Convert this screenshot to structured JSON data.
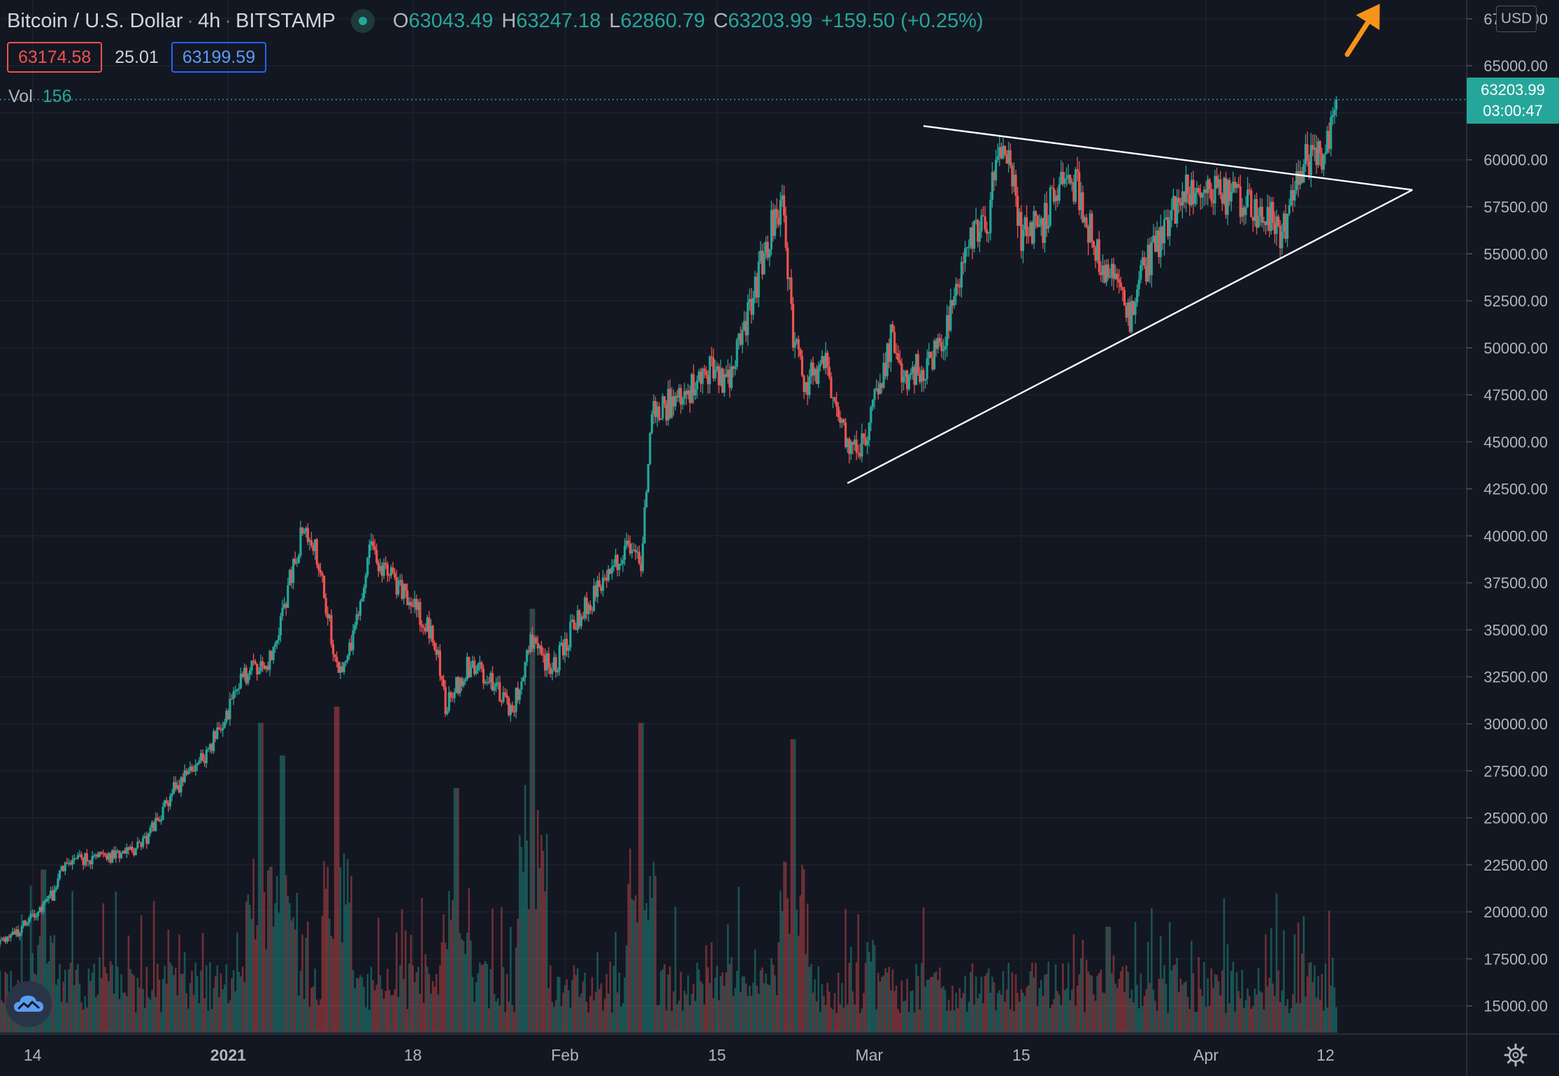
{
  "header": {
    "symbol": "Bitcoin / U.S. Dollar",
    "interval": "4h",
    "exchange": "BITSTAMP",
    "open_label": "O",
    "open": "63043.49",
    "high_label": "H",
    "high": "63247.18",
    "low_label": "L",
    "low": "62860.79",
    "close_label": "C",
    "close": "63203.99",
    "change": "+159.50 (+0.25%)"
  },
  "quote": {
    "sell": "63174.58",
    "spread": "25.01",
    "buy": "63199.59"
  },
  "volume": {
    "label": "Vol",
    "value": "156"
  },
  "price_scale": {
    "currency": "USD",
    "last_price": "63203.99",
    "countdown": "03:00:47"
  },
  "icons": {
    "logo": "tradingview-cloud-icon",
    "settings": "gear-icon",
    "status": "market-open-dot-icon",
    "arrow": "breakout-arrow-icon"
  },
  "colors": {
    "background": "#131722",
    "up": "#26a69a",
    "down": "#ef5350",
    "grid": "#1e222d",
    "drawing": "#ffffff",
    "arrow": "#f7931a"
  },
  "chart_data": {
    "type": "candlestick",
    "interval": "4h",
    "price_axis": {
      "range": [
        13500,
        68500
      ],
      "ticks": [
        15000,
        17500,
        20000,
        22500,
        25000,
        27500,
        30000,
        32500,
        35000,
        37500,
        40000,
        42500,
        45000,
        47500,
        50000,
        52500,
        55000,
        57500,
        60000,
        62500,
        65000,
        67500
      ],
      "tick_labels": [
        "15000.00",
        "17500.00",
        "20000.00",
        "22500.00",
        "25000.00",
        "27500.00",
        "30000.00",
        "32500.00",
        "35000.00",
        "37500.00",
        "40000.00",
        "42500.00",
        "45000.00",
        "47500.00",
        "50000.00",
        "52500.00",
        "55000.00",
        "57500.00",
        "60000.00",
        "",
        "65000.00",
        "67500.00"
      ]
    },
    "time_axis": {
      "range": [
        "2020-12-11",
        "2021-04-25"
      ],
      "ticks": [
        "2020-12-14",
        "2021-01-01",
        "2021-01-18",
        "2021-02-01",
        "2021-02-15",
        "2021-03-01",
        "2021-03-15",
        "2021-04-01",
        "2021-04-12"
      ],
      "tick_labels": [
        "14",
        "2021",
        "18",
        "Feb",
        "15",
        "Mar",
        "15",
        "Apr",
        "12"
      ]
    },
    "grid": true,
    "last_price": 63203.99,
    "price_path": [
      [
        "2020-12-11",
        18300
      ],
      [
        "2020-12-13",
        19100
      ],
      [
        "2020-12-16",
        21000
      ],
      [
        "2020-12-17",
        22800
      ],
      [
        "2020-12-22",
        23000
      ],
      [
        "2020-12-24",
        23400
      ],
      [
        "2020-12-27",
        26500
      ],
      [
        "2020-12-30",
        28300
      ],
      [
        "2021-01-02",
        32000
      ],
      [
        "2021-01-03",
        33000
      ],
      [
        "2021-01-05",
        33500
      ],
      [
        "2021-01-08",
        40800
      ],
      [
        "2021-01-09",
        39500
      ],
      [
        "2021-01-11",
        33000
      ],
      [
        "2021-01-12",
        33500
      ],
      [
        "2021-01-14",
        39200
      ],
      [
        "2021-01-18",
        36300
      ],
      [
        "2021-01-20",
        34500
      ],
      [
        "2021-01-21",
        31000
      ],
      [
        "2021-01-23",
        33000
      ],
      [
        "2021-01-25",
        32500
      ],
      [
        "2021-01-27",
        30500
      ],
      [
        "2021-01-29",
        34500
      ],
      [
        "2021-01-30",
        33500
      ],
      [
        "2021-01-31",
        33000
      ],
      [
        "2021-02-02",
        35500
      ],
      [
        "2021-02-05",
        37800
      ],
      [
        "2021-02-07",
        39500
      ],
      [
        "2021-02-08",
        38000
      ],
      [
        "2021-02-09",
        46500
      ],
      [
        "2021-02-12",
        47500
      ],
      [
        "2021-02-14",
        49000
      ],
      [
        "2021-02-16",
        48000
      ],
      [
        "2021-02-18",
        52000
      ],
      [
        "2021-02-20",
        56500
      ],
      [
        "2021-02-21",
        57500
      ],
      [
        "2021-02-22",
        50500
      ],
      [
        "2021-02-23",
        48000
      ],
      [
        "2021-02-25",
        49500
      ],
      [
        "2021-02-26",
        46500
      ],
      [
        "2021-02-28",
        44000
      ],
      [
        "2021-03-02",
        48000
      ],
      [
        "2021-03-03",
        50500
      ],
      [
        "2021-03-04",
        48500
      ],
      [
        "2021-03-06",
        49000
      ],
      [
        "2021-03-08",
        50500
      ],
      [
        "2021-03-10",
        55500
      ],
      [
        "2021-03-12",
        57000
      ],
      [
        "2021-03-13",
        61000
      ],
      [
        "2021-03-14",
        59800
      ],
      [
        "2021-03-15",
        56000
      ],
      [
        "2021-03-17",
        56500
      ],
      [
        "2021-03-18",
        58500
      ],
      [
        "2021-03-20",
        58700
      ],
      [
        "2021-03-22",
        55000
      ],
      [
        "2021-03-23",
        54000
      ],
      [
        "2021-03-25",
        51500
      ],
      [
        "2021-03-26",
        54000
      ],
      [
        "2021-03-28",
        55800
      ],
      [
        "2021-03-30",
        58500
      ],
      [
        "2021-04-01",
        58800
      ],
      [
        "2021-04-03",
        58000
      ],
      [
        "2021-04-05",
        57500
      ],
      [
        "2021-04-07",
        57000
      ],
      [
        "2021-04-08",
        56000
      ],
      [
        "2021-04-09",
        58200
      ],
      [
        "2021-04-10",
        59800
      ],
      [
        "2021-04-11",
        59900
      ],
      [
        "2021-04-12",
        60500
      ],
      [
        "2021-04-13",
        63203.99
      ]
    ],
    "volume": {
      "range": [
        0,
        30000
      ],
      "peaks": [
        [
          "2020-12-15",
          10000
        ],
        [
          "2021-01-04",
          19000
        ],
        [
          "2021-01-06",
          17000
        ],
        [
          "2021-01-11",
          20000
        ],
        [
          "2021-01-22",
          15000
        ],
        [
          "2021-01-29",
          26000
        ],
        [
          "2021-02-08",
          19000
        ],
        [
          "2021-02-22",
          18000
        ],
        [
          "2021-03-23",
          6500
        ]
      ]
    },
    "drawings": [
      {
        "type": "trend_line",
        "from": [
          "2021-03-06",
          61800
        ],
        "to": [
          "2021-04-20",
          58400
        ]
      },
      {
        "type": "trend_line",
        "from": [
          "2021-02-27",
          42800
        ],
        "to": [
          "2021-04-20",
          58400
        ]
      },
      {
        "type": "arrow",
        "from": [
          "2021-04-14",
          65600
        ],
        "to": [
          "2021-04-17",
          68300
        ]
      }
    ]
  }
}
